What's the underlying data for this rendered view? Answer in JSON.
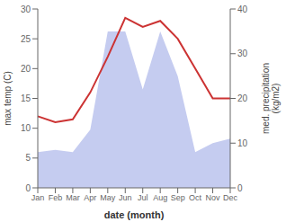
{
  "chart_data": {
    "type": "line",
    "categories": [
      "Jan",
      "Feb",
      "Mar",
      "Apr",
      "May",
      "Jun",
      "Jul",
      "Aug",
      "Sep",
      "Oct",
      "Nov",
      "Dec"
    ],
    "series": [
      {
        "type": "area",
        "axis": "y2",
        "color": "#c5ccf0",
        "values": [
          8.0,
          8.5,
          8.0,
          13.0,
          35.0,
          35.0,
          22.0,
          35.0,
          25.0,
          8.0,
          10.0,
          11.0
        ]
      },
      {
        "type": "line",
        "color": "#cc3333",
        "values": [
          12.0,
          11.0,
          11.5,
          16.0,
          22.0,
          28.5,
          27.0,
          28.0,
          25.0,
          20.0,
          15.0,
          15.0
        ]
      }
    ],
    "xlabel": "date (month)",
    "ylabel": "max temp (C)",
    "y2label": "med. precipitation\n(kg/m2)",
    "ylim": [
      0,
      30
    ],
    "yticks": [
      0,
      5,
      10,
      15,
      20,
      25,
      30
    ],
    "y2lim": [
      0,
      40
    ],
    "y2ticks": [
      0,
      10,
      20,
      30,
      40
    ]
  }
}
